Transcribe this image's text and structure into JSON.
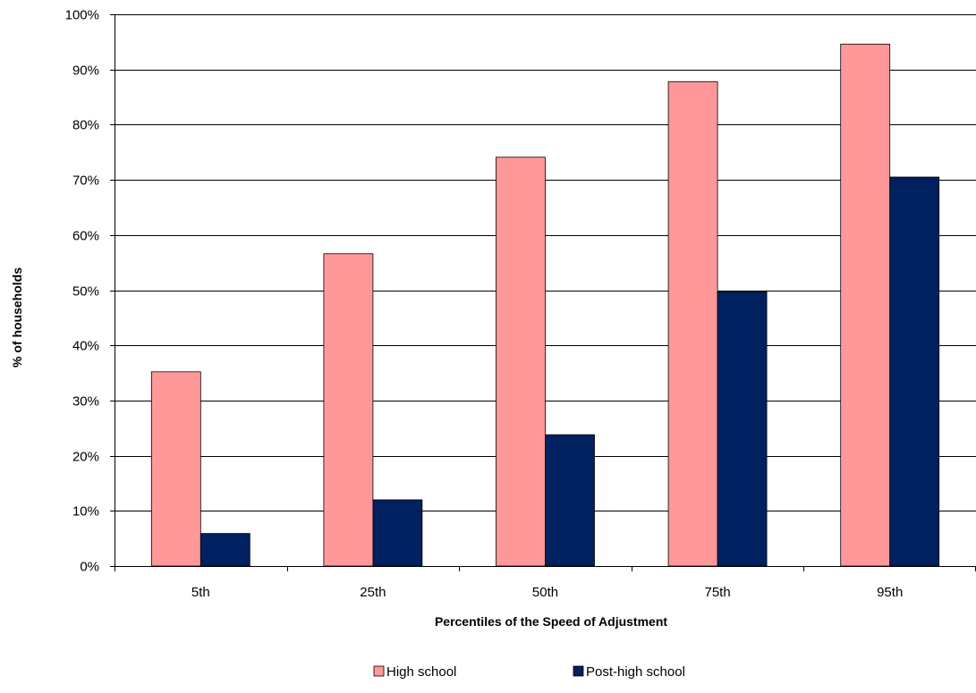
{
  "chart_data": {
    "type": "bar",
    "title": "",
    "xlabel": "Percentiles of the Speed of Adjustment",
    "ylabel": "% of households",
    "categories": [
      "5th",
      "25th",
      "50th",
      "75th",
      "95th"
    ],
    "series": [
      {
        "name": "High school",
        "values": [
          35.2,
          56.6,
          74.1,
          87.8,
          94.6
        ],
        "color": "#ff9999"
      },
      {
        "name": "Post-high school",
        "values": [
          5.9,
          12.0,
          23.8,
          49.7,
          70.5
        ],
        "color": "#002060"
      }
    ],
    "ylim": [
      0,
      100
    ],
    "yticks": [
      0,
      10,
      20,
      30,
      40,
      50,
      60,
      70,
      80,
      90,
      100
    ],
    "ytick_labels": [
      "0%",
      "10%",
      "20%",
      "30%",
      "40%",
      "50%",
      "60%",
      "70%",
      "80%",
      "90%",
      "100%"
    ],
    "grid": true,
    "legend_position": "bottom"
  }
}
